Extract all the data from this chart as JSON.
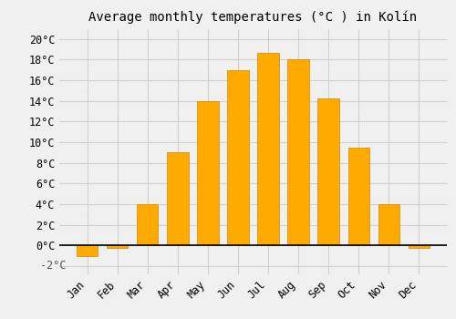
{
  "title": "Average monthly temperatures (°C ) in Kolín",
  "months": [
    "Jan",
    "Feb",
    "Mar",
    "Apr",
    "May",
    "Jun",
    "Jul",
    "Aug",
    "Sep",
    "Oct",
    "Nov",
    "Dec"
  ],
  "temperatures": [
    -1.0,
    -0.2,
    4.0,
    9.0,
    14.0,
    17.0,
    18.7,
    18.0,
    14.2,
    9.5,
    4.0,
    -0.2
  ],
  "bar_color": "#FFAA00",
  "bar_edge_color": "#CC8800",
  "background_color": "#f0f0f0",
  "grid_color": "#d0d0d0",
  "ytick_labels": [
    "",
    "0°C",
    "2°C",
    "4°C",
    "6°C",
    "8°C",
    "10°C",
    "12°C",
    "14°C",
    "16°C",
    "18°C",
    "20°C"
  ],
  "ytick_values": [
    -2,
    0,
    2,
    4,
    6,
    8,
    10,
    12,
    14,
    16,
    18,
    20
  ],
  "ylim": [
    -2.8,
    21.0
  ],
  "title_fontsize": 10,
  "tick_fontsize": 8.5
}
